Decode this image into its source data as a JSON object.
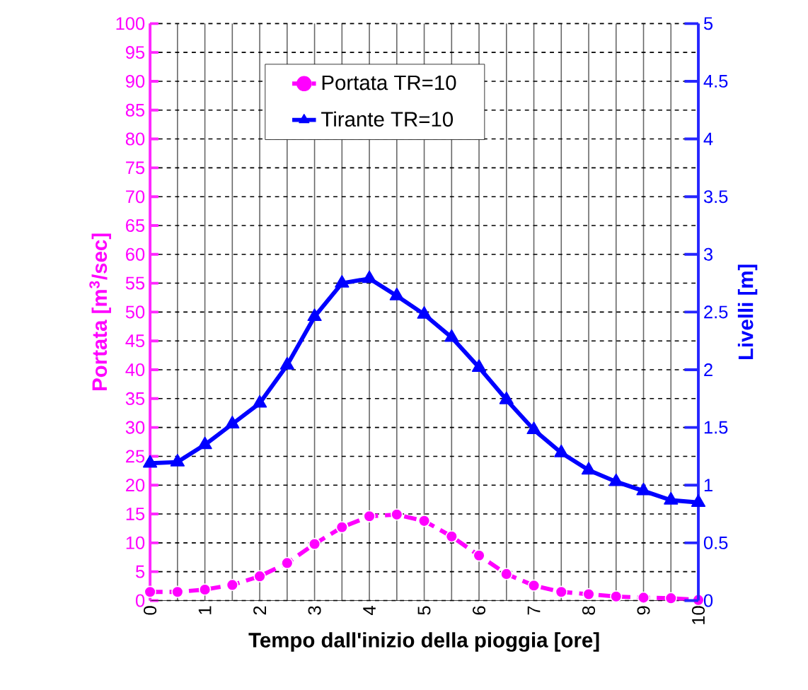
{
  "chart_data": {
    "type": "line",
    "xlabel": "Tempo dall'inizio della pioggia [ore]",
    "ylabel": "Portata [m$^{3}$/sec]",
    "y2label": "Livelli [m]",
    "x": [
      0,
      0.5,
      1,
      1.5,
      2,
      2.5,
      3,
      3.5,
      4,
      4.5,
      5,
      5.5,
      6,
      6.5,
      7,
      7.5,
      8,
      8.5,
      9,
      9.5,
      10
    ],
    "series": [
      {
        "name": "Portata TR=10",
        "color": "#ff00ff",
        "marker": "circle",
        "line_style": "dashed",
        "values": [
          1.5,
          1.5,
          1.9,
          2.7,
          4.2,
          6.5,
          9.8,
          12.7,
          14.6,
          14.9,
          13.8,
          11.1,
          7.8,
          4.6,
          2.6,
          1.5,
          1.1,
          0.7,
          0.5,
          0.4,
          0.1
        ]
      },
      {
        "name": "Tirante TR=10",
        "color": "#0000ff",
        "marker": "triangle",
        "line_style": "solid",
        "axis": "y2",
        "values": [
          1.19,
          1.2,
          1.35,
          1.53,
          1.71,
          2.04,
          2.46,
          2.75,
          2.79,
          2.64,
          2.48,
          2.28,
          2.02,
          1.74,
          1.48,
          1.28,
          1.13,
          1.03,
          0.95,
          0.87,
          0.85
        ]
      }
    ],
    "xlim": [
      0,
      10
    ],
    "xticks": [
      0,
      {
        "value": 0.5,
        "label": null
      },
      1,
      {
        "value": 1.5,
        "label": null
      },
      2,
      {
        "value": 2.5,
        "label": null
      },
      3,
      {
        "value": 3.5,
        "label": null
      },
      4,
      {
        "value": 4.5,
        "label": null
      },
      5,
      {
        "value": 5.5,
        "label": null
      },
      6,
      {
        "value": 6.5,
        "label": null
      },
      7,
      {
        "value": 7.5,
        "label": null
      },
      8,
      {
        "value": 8.5,
        "label": null
      },
      9,
      {
        "value": 9.5,
        "label": null
      },
      10
    ],
    "ylim": [
      0,
      100
    ],
    "yticks": [
      0,
      5,
      10,
      15,
      20,
      25,
      30,
      35,
      40,
      45,
      50,
      55,
      60,
      65,
      70,
      75,
      80,
      85,
      90,
      95,
      100
    ],
    "y2lim": [
      0,
      5
    ],
    "y2ticks": [
      0,
      0.5,
      1,
      1.5,
      2,
      2.5,
      3,
      3.5,
      4,
      4.5,
      5
    ],
    "grid": true,
    "legend": "top"
  }
}
